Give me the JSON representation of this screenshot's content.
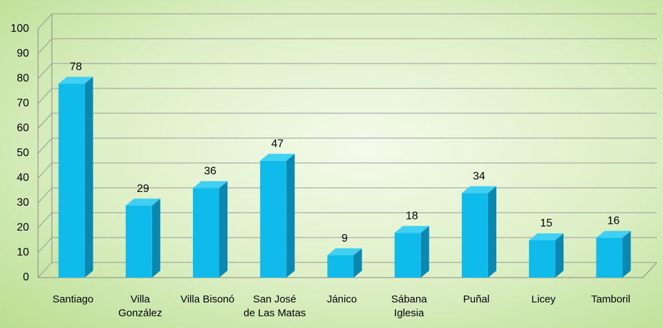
{
  "chart_data": {
    "type": "bar3d",
    "categories": [
      "Santiago",
      "Villa\nGonzález",
      "Villa Bisonó",
      "San José\nde Las Matas",
      "Jánico",
      "Sábana\nIglesia",
      "Puñal",
      "Licey",
      "Tamboril"
    ],
    "values": [
      78,
      29,
      36,
      47,
      9,
      18,
      34,
      15,
      16
    ],
    "color": "#0fbbea",
    "side_color": "#0a88b2",
    "top_color": "#3fd0f3",
    "ylim": [
      0,
      100
    ],
    "yticks": [
      0,
      10,
      20,
      30,
      40,
      50,
      60,
      70,
      80,
      90,
      100
    ],
    "grid": true
  }
}
